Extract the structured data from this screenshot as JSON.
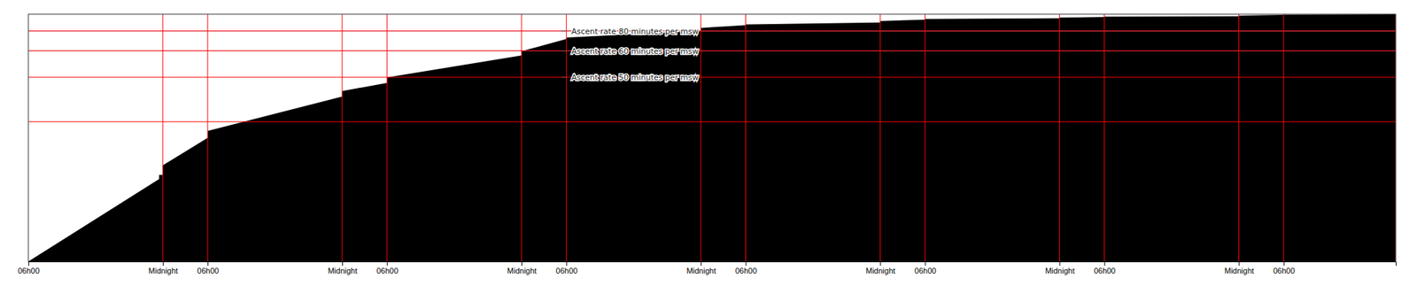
{
  "chart_data": {
    "type": "area",
    "x": [
      0,
      17.5,
      17.5,
      18,
      18,
      24,
      24,
      42,
      42,
      48,
      48,
      66,
      66,
      72,
      72,
      90,
      90,
      96,
      96,
      114,
      114,
      120,
      120,
      138,
      138,
      144,
      144,
      162,
      162,
      168,
      168,
      183
    ],
    "values": [
      180,
      120,
      117,
      117,
      110,
      90,
      85,
      60,
      56,
      50,
      46,
      30,
      27,
      18,
      17,
      12,
      10,
      8,
      7.5,
      6,
      5,
      4,
      3.5,
      3,
      2.5,
      2,
      1.8,
      1.5,
      1.0,
      0.5,
      0.4,
      0
    ],
    "color": "#000000",
    "xlim": [
      0,
      183
    ],
    "ylim": [
      180,
      0
    ],
    "xticks": [
      {
        "value": 0,
        "label": "06h00"
      },
      {
        "value": 18,
        "label": "Midnight"
      },
      {
        "value": 24,
        "label": "06h00"
      },
      {
        "value": 42,
        "label": "Midnight"
      },
      {
        "value": 48,
        "label": "06h00"
      },
      {
        "value": 66,
        "label": "Midnight"
      },
      {
        "value": 72,
        "label": "06h00"
      },
      {
        "value": 90,
        "label": "Midnight"
      },
      {
        "value": 96,
        "label": "06h00"
      },
      {
        "value": 114,
        "label": "Midnight"
      },
      {
        "value": 120,
        "label": "06h00"
      },
      {
        "value": 138,
        "label": "Midnight"
      },
      {
        "value": 144,
        "label": "06h00"
      },
      {
        "value": 162,
        "label": "Midnight"
      },
      {
        "value": 168,
        "label": "06h00"
      }
    ],
    "tick_labels": "x",
    "hlines": [
      {
        "value": 12.24,
        "color": "#aaaacc"
      },
      {
        "value": 26.64,
        "color": "#aaaacc"
      },
      {
        "value": 12.24,
        "color": "red"
      },
      {
        "value": 26.64,
        "color": "red"
      },
      {
        "value": 45.9,
        "color": "red"
      },
      {
        "value": 78.3,
        "color": "red"
      }
    ],
    "vlines": [
      {
        "value": 18,
        "color": "red"
      },
      {
        "value": 24,
        "color": "red"
      },
      {
        "value": 42,
        "color": "red"
      },
      {
        "value": 48,
        "color": "red"
      },
      {
        "value": 66,
        "color": "red"
      },
      {
        "value": 72,
        "color": "red"
      },
      {
        "value": 90,
        "color": "red"
      },
      {
        "value": 96,
        "color": "red"
      },
      {
        "value": 114,
        "color": "red"
      },
      {
        "value": 120,
        "color": "red"
      },
      {
        "value": 138,
        "color": "red"
      },
      {
        "value": 144,
        "color": "red"
      },
      {
        "value": 162,
        "color": "red"
      },
      {
        "value": 168,
        "color": "red"
      },
      {
        "value": 183,
        "color": "red"
      }
    ],
    "annotations": [
      {
        "text": "Ascent rate 80 minutes per msw",
        "x": 71.919,
        "y": 12.24
      },
      {
        "text": "Ascent rate 60 minutes per msw",
        "x": 71.919,
        "y": 26.64
      },
      {
        "text": "Ascent rate 50 minutes per msw",
        "x": 71.919,
        "y": 45.9
      }
    ]
  }
}
